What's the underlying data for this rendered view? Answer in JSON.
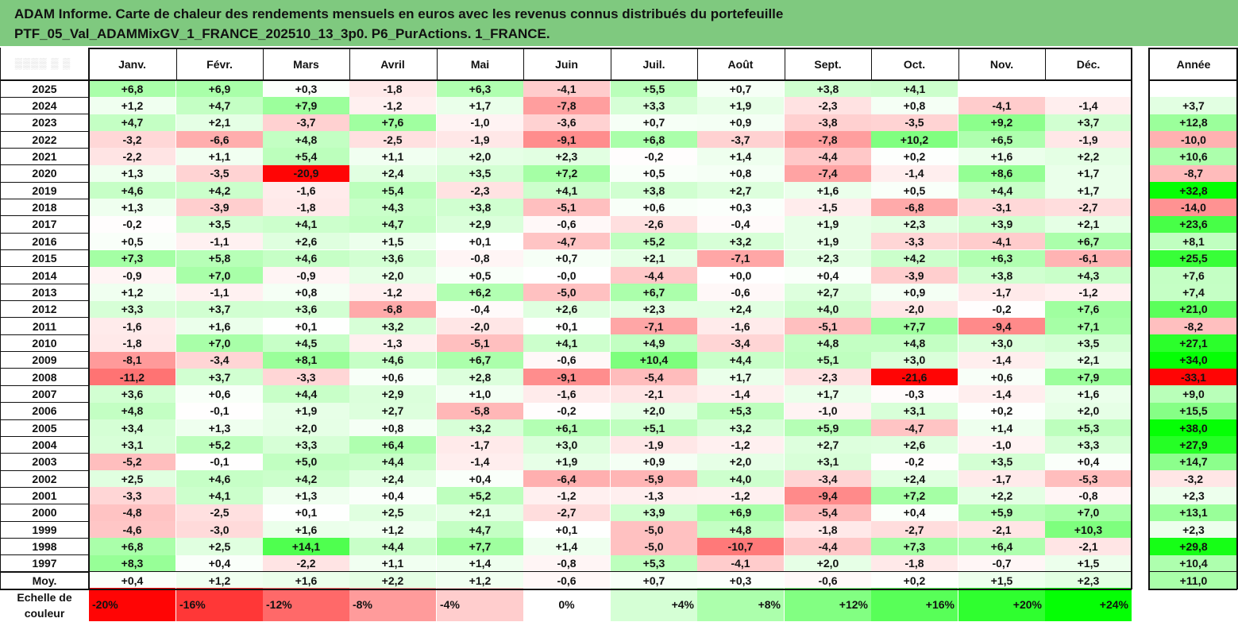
{
  "title": {
    "line1": "ADAM Informe. Carte de chaleur des rendements mensuels en euros avec les revenus connus distribués du portefeuille",
    "line2": "PTF_05_Val_ADAMMixGV_1_FRANCE_202510_13_3p0. P6_PurActions. 1_FRANCE."
  },
  "colors": {
    "title_bg": "#7fc97f",
    "neg_max": "#ff0000",
    "pos_max": "#00ff00",
    "zero": "#ffffff"
  },
  "chart_data": {
    "type": "heatmap",
    "title": "ADAM Informe. Carte de chaleur des rendements mensuels en euros avec les revenus connus distribués du portefeuille PTF_05_Val_ADAMMixGV_1_FRANCE_202510_13_3p0. P6_PurActions. 1_FRANCE.",
    "columns": [
      "Janv.",
      "Févr.",
      "Mars",
      "Avril",
      "Mai",
      "Juin",
      "Juil.",
      "Août",
      "Sept.",
      "Oct.",
      "Nov.",
      "Déc."
    ],
    "annual_header": "Année",
    "rows": [
      {
        "year": "2025",
        "m": [
          "+6,8",
          "+6,9",
          "+0,3",
          "-1,8",
          "+6,3",
          "-4,1",
          "+5,5",
          "+0,7",
          "+3,8",
          "+4,1",
          "",
          ""
        ],
        "annual": ""
      },
      {
        "year": "2024",
        "m": [
          "+1,2",
          "+4,7",
          "+7,9",
          "-1,2",
          "+1,7",
          "-7,8",
          "+3,3",
          "+1,9",
          "-2,3",
          "+0,8",
          "-4,1",
          "-1,4"
        ],
        "annual": "+3,7"
      },
      {
        "year": "2023",
        "m": [
          "+4,7",
          "+2,1",
          "-3,7",
          "+7,6",
          "-1,0",
          "-3,6",
          "+0,7",
          "+0,9",
          "-3,8",
          "-3,5",
          "+9,2",
          "+3,7"
        ],
        "annual": "+12,8"
      },
      {
        "year": "2022",
        "m": [
          "-3,2",
          "-6,6",
          "+4,8",
          "-2,5",
          "-1,9",
          "-9,1",
          "+6,8",
          "-3,7",
          "-7,8",
          "+10,2",
          "+6,5",
          "-1,9"
        ],
        "annual": "-10,0"
      },
      {
        "year": "2021",
        "m": [
          "-2,2",
          "+1,1",
          "+5,4",
          "+1,1",
          "+2,0",
          "+2,3",
          "-0,2",
          "+1,4",
          "-4,4",
          "+0,2",
          "+1,6",
          "+2,2"
        ],
        "annual": "+10,6"
      },
      {
        "year": "2020",
        "m": [
          "+1,3",
          "-3,5",
          "-20,9",
          "+2,4",
          "+3,5",
          "+7,2",
          "+0,5",
          "+0,8",
          "-7,4",
          "-1,4",
          "+8,6",
          "+1,7"
        ],
        "annual": "-8,7"
      },
      {
        "year": "2019",
        "m": [
          "+4,6",
          "+4,2",
          "-1,6",
          "+5,4",
          "-2,3",
          "+4,1",
          "+3,8",
          "+2,7",
          "+1,6",
          "+0,5",
          "+4,4",
          "+1,7"
        ],
        "annual": "+32,8"
      },
      {
        "year": "2018",
        "m": [
          "+1,3",
          "-3,9",
          "-1,8",
          "+4,3",
          "+3,8",
          "-5,1",
          "+0,6",
          "+0,3",
          "-1,5",
          "-6,8",
          "-3,1",
          "-2,7"
        ],
        "annual": "-14,0"
      },
      {
        "year": "2017",
        "m": [
          "-0,2",
          "+3,5",
          "+4,1",
          "+4,7",
          "+2,9",
          "-0,6",
          "-2,6",
          "-0,4",
          "+1,9",
          "+2,3",
          "+3,9",
          "+2,1"
        ],
        "annual": "+23,6"
      },
      {
        "year": "2016",
        "m": [
          "+0,5",
          "-1,1",
          "+2,6",
          "+1,5",
          "+0,1",
          "-4,7",
          "+5,2",
          "+3,2",
          "+1,9",
          "-3,3",
          "-4,1",
          "+6,7"
        ],
        "annual": "+8,1"
      },
      {
        "year": "2015",
        "m": [
          "+7,3",
          "+5,8",
          "+4,6",
          "+3,6",
          "-0,8",
          "+0,7",
          "+2,1",
          "-7,1",
          "+2,3",
          "+4,2",
          "+6,3",
          "-6,1"
        ],
        "annual": "+25,5"
      },
      {
        "year": "2014",
        "m": [
          "-0,9",
          "+7,0",
          "-0,9",
          "+2,0",
          "+0,5",
          "-0,0",
          "-4,4",
          "+0,0",
          "+0,4",
          "-3,9",
          "+3,8",
          "+4,3"
        ],
        "annual": "+7,6"
      },
      {
        "year": "2013",
        "m": [
          "+1,2",
          "-1,1",
          "+0,8",
          "-1,2",
          "+6,2",
          "-5,0",
          "+6,7",
          "-0,6",
          "+2,7",
          "+0,9",
          "-1,7",
          "-1,2"
        ],
        "annual": "+7,4"
      },
      {
        "year": "2012",
        "m": [
          "+3,3",
          "+3,7",
          "+3,6",
          "-6,8",
          "-0,4",
          "+2,6",
          "+2,3",
          "+2,4",
          "+4,0",
          "-2,0",
          "-0,2",
          "+7,6"
        ],
        "annual": "+21,0"
      },
      {
        "year": "2011",
        "m": [
          "-1,6",
          "+1,6",
          "+0,1",
          "+3,2",
          "-2,0",
          "+0,1",
          "-7,1",
          "-1,6",
          "-5,1",
          "+7,7",
          "-9,4",
          "+7,1"
        ],
        "annual": "-8,2"
      },
      {
        "year": "2010",
        "m": [
          "-1,8",
          "+7,0",
          "+4,5",
          "-1,3",
          "-5,1",
          "+4,1",
          "+4,9",
          "-3,4",
          "+4,8",
          "+4,8",
          "+3,0",
          "+3,5"
        ],
        "annual": "+27,1"
      },
      {
        "year": "2009",
        "m": [
          "-8,1",
          "-3,4",
          "+8,1",
          "+4,6",
          "+6,7",
          "-0,6",
          "+10,4",
          "+4,4",
          "+5,1",
          "+3,0",
          "-1,4",
          "+2,1"
        ],
        "annual": "+34,0"
      },
      {
        "year": "2008",
        "m": [
          "-11,2",
          "+3,7",
          "-3,3",
          "+0,6",
          "+2,8",
          "-9,1",
          "-5,4",
          "+1,7",
          "-2,3",
          "-21,6",
          "+0,6",
          "+7,9"
        ],
        "annual": "-33,1"
      },
      {
        "year": "2007",
        "m": [
          "+3,6",
          "+0,6",
          "+4,4",
          "+2,9",
          "+1,0",
          "-1,6",
          "-2,1",
          "-1,4",
          "+1,7",
          "-0,3",
          "-1,4",
          "+1,6"
        ],
        "annual": "+9,0"
      },
      {
        "year": "2006",
        "m": [
          "+4,8",
          "-0,1",
          "+1,9",
          "+2,7",
          "-5,8",
          "-0,2",
          "+2,0",
          "+5,3",
          "-1,0",
          "+3,1",
          "+0,2",
          "+2,0"
        ],
        "annual": "+15,5"
      },
      {
        "year": "2005",
        "m": [
          "+3,4",
          "+1,3",
          "+2,0",
          "+0,8",
          "+3,2",
          "+6,1",
          "+5,1",
          "+3,2",
          "+5,9",
          "-4,7",
          "+1,4",
          "+5,3"
        ],
        "annual": "+38,0"
      },
      {
        "year": "2004",
        "m": [
          "+3,1",
          "+5,2",
          "+3,3",
          "+6,4",
          "-1,7",
          "+3,0",
          "-1,9",
          "-1,2",
          "+2,7",
          "+2,6",
          "-1,0",
          "+3,3"
        ],
        "annual": "+27,9"
      },
      {
        "year": "2003",
        "m": [
          "-5,2",
          "-0,1",
          "+5,0",
          "+4,4",
          "-1,4",
          "+1,9",
          "+0,9",
          "+2,0",
          "+3,1",
          "-0,2",
          "+3,5",
          "+0,4"
        ],
        "annual": "+14,7"
      },
      {
        "year": "2002",
        "m": [
          "+2,5",
          "+4,6",
          "+4,2",
          "+2,4",
          "+0,4",
          "-6,4",
          "-5,9",
          "+4,0",
          "-3,4",
          "+2,4",
          "-1,7",
          "-5,3"
        ],
        "annual": "-3,2"
      },
      {
        "year": "2001",
        "m": [
          "-3,3",
          "+4,1",
          "+1,3",
          "+0,4",
          "+5,2",
          "-1,2",
          "-1,3",
          "-1,2",
          "-9,4",
          "+7,2",
          "+2,2",
          "-0,8"
        ],
        "annual": "+2,3"
      },
      {
        "year": "2000",
        "m": [
          "-4,8",
          "-2,5",
          "+0,1",
          "+2,5",
          "+2,1",
          "-2,7",
          "+3,9",
          "+6,9",
          "-5,4",
          "+0,4",
          "+5,9",
          "+7,0"
        ],
        "annual": "+13,1"
      },
      {
        "year": "1999",
        "m": [
          "-4,6",
          "-3,0",
          "+1,6",
          "+1,2",
          "+4,7",
          "+0,1",
          "-5,0",
          "+4,8",
          "-1,8",
          "-2,7",
          "-2,1",
          "+10,3"
        ],
        "annual": "+2,3"
      },
      {
        "year": "1998",
        "m": [
          "+6,8",
          "+2,5",
          "+14,1",
          "+4,4",
          "+7,7",
          "+1,4",
          "-5,0",
          "-10,7",
          "-4,4",
          "+7,3",
          "+6,4",
          "-2,1"
        ],
        "annual": "+29,8"
      },
      {
        "year": "1997",
        "m": [
          "+8,3",
          "+0,4",
          "-2,2",
          "+1,1",
          "+1,4",
          "-0,8",
          "+5,3",
          "-4,1",
          "+2,0",
          "-1,8",
          "-0,7",
          "+1,5"
        ],
        "annual": "+10,4"
      }
    ],
    "average": {
      "label": "Moy.",
      "m": [
        "+0,4",
        "+1,2",
        "+1,6",
        "+2,2",
        "+1,2",
        "-0,6",
        "+0,7",
        "+0,3",
        "-0,6",
        "+0,2",
        "+1,5",
        "+2,3"
      ],
      "annual": "+11,0"
    },
    "scale": {
      "label_line1": "Echelle de",
      "label_line2": "couleur",
      "stops": [
        "-20%",
        "-16%",
        "-12%",
        "-8%",
        "-4%",
        "0%",
        "+4%",
        "+8%",
        "+12%",
        "+16%",
        "+20%",
        "+24%"
      ]
    }
  }
}
